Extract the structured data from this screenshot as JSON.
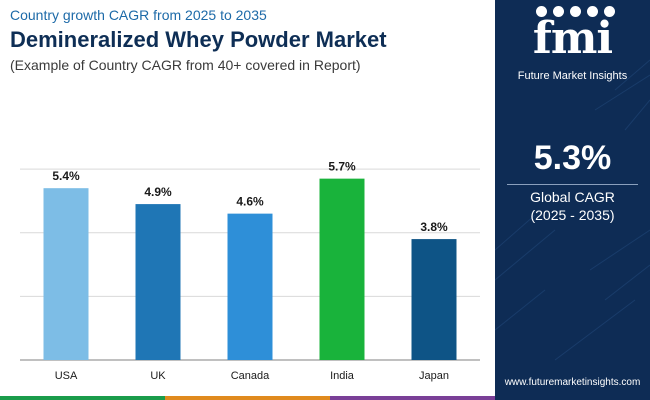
{
  "header": {
    "top_line": "Country growth CAGR from 2025 to 2035",
    "title": "Demineralized Whey Powder Market",
    "subtitle": "(Example of Country CAGR from 40+ covered in Report)"
  },
  "brand": {
    "logo_text": "fmi",
    "name": "Future Market Insights",
    "website": "www.futuremarketinsights.com"
  },
  "summary": {
    "value": "5.3%",
    "label": "Global CAGR",
    "period": "(2025 - 2035)"
  },
  "colors": {
    "panel": "#0e2c55",
    "title": "#0e2e55",
    "accent": "#1d6aa8"
  },
  "chart_data": {
    "type": "bar",
    "categories": [
      "USA",
      "UK",
      "Canada",
      "India",
      "Japan"
    ],
    "values": [
      5.4,
      4.9,
      4.6,
      5.7,
      3.8
    ],
    "data_labels": [
      "5.4%",
      "4.9%",
      "4.6%",
      "5.7%",
      "3.8%"
    ],
    "bar_colors": [
      "#7dbde6",
      "#1f76b5",
      "#2e8fd8",
      "#19b33b",
      "#0e5486"
    ],
    "ylim": [
      0,
      7.7
    ],
    "grid_values": [
      0,
      2.0,
      4.0,
      6.0
    ],
    "grid": true,
    "title": "",
    "xlabel": "",
    "ylabel": ""
  }
}
